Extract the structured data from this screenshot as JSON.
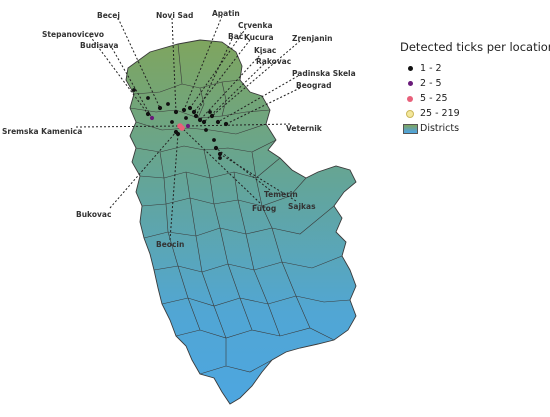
{
  "legend": {
    "title": "Detected ticks per location",
    "items": [
      {
        "label": "1 - 2",
        "color": "#111111",
        "size": "small",
        "name": "legend-class-1-2"
      },
      {
        "label": "2 - 5",
        "color": "#6a1b7a",
        "size": "small",
        "name": "legend-class-2-5"
      },
      {
        "label": "5 - 25",
        "color": "#e8607a",
        "size": "medium",
        "name": "legend-class-5-25"
      },
      {
        "label": "25 - 219",
        "color": "#f3e79b",
        "size": "large",
        "name": "legend-class-25-219"
      }
    ],
    "districts_label": "Districts"
  },
  "map": {
    "fill_top_color": "#7fa55e",
    "fill_bottom_color": "#4da6e0",
    "border_color": "#3a3a3a",
    "places": [
      {
        "name": "Becej",
        "tick_class": "1 - 2"
      },
      {
        "name": "Novi Sad",
        "tick_class": "1 - 2"
      },
      {
        "name": "Apatin",
        "tick_class": "1 - 2"
      },
      {
        "name": "Crvenka",
        "tick_class": "1 - 2"
      },
      {
        "name": "Kucura",
        "tick_class": "1 - 2"
      },
      {
        "name": "Bač",
        "tick_class": "1 - 2"
      },
      {
        "name": "Zrenjanin",
        "tick_class": "1 - 2"
      },
      {
        "name": "Stepanovicevo",
        "tick_class": "1 - 2"
      },
      {
        "name": "Budisava",
        "tick_class": "2 - 5"
      },
      {
        "name": "Kisac",
        "tick_class": "1 - 2"
      },
      {
        "name": "Rakovac",
        "tick_class": "1 - 2"
      },
      {
        "name": "Padinska Skela",
        "tick_class": "1 - 2"
      },
      {
        "name": "Beograd",
        "tick_class": "1 - 2"
      },
      {
        "name": "Sremska Kamenica",
        "tick_class": "5 - 25"
      },
      {
        "name": "Veternik",
        "tick_class": "2 - 5"
      },
      {
        "name": "Temerin",
        "tick_class": "1 - 2"
      },
      {
        "name": "Futog",
        "tick_class": "5 - 25"
      },
      {
        "name": "Sajkas",
        "tick_class": "1 - 2"
      },
      {
        "name": "Bukovac",
        "tick_class": "1 - 2"
      },
      {
        "name": "Beocin",
        "tick_class": "1 - 2"
      }
    ]
  }
}
